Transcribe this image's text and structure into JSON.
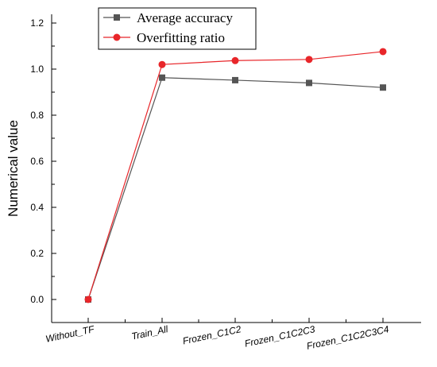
{
  "chart_data": {
    "type": "line",
    "title": "",
    "xlabel": "",
    "ylabel": "Numerical value",
    "categories": [
      "Without_TF",
      "Train_All",
      "Frozen_C1C2",
      "Frozen_C1C2C3",
      "Frozen_C1C2C3C4"
    ],
    "ylim": [
      0.0,
      1.2
    ],
    "yticks": [
      0.0,
      0.2,
      0.4,
      0.6,
      0.8,
      1.0,
      1.2
    ],
    "ytick_labels": [
      "0.0",
      "0.2",
      "0.4",
      "0.6",
      "0.8",
      "1.0",
      "1.2"
    ],
    "grid": false,
    "legend_position": "top-left",
    "series": [
      {
        "name": "Average accuracy",
        "marker": "square",
        "color": "#555555",
        "values": [
          0.0,
          0.963,
          0.952,
          0.94,
          0.92
        ]
      },
      {
        "name": "Overfitting ratio",
        "marker": "circle",
        "color": "#e8262a",
        "values": [
          0.0,
          1.02,
          1.037,
          1.042,
          1.076
        ]
      }
    ]
  }
}
